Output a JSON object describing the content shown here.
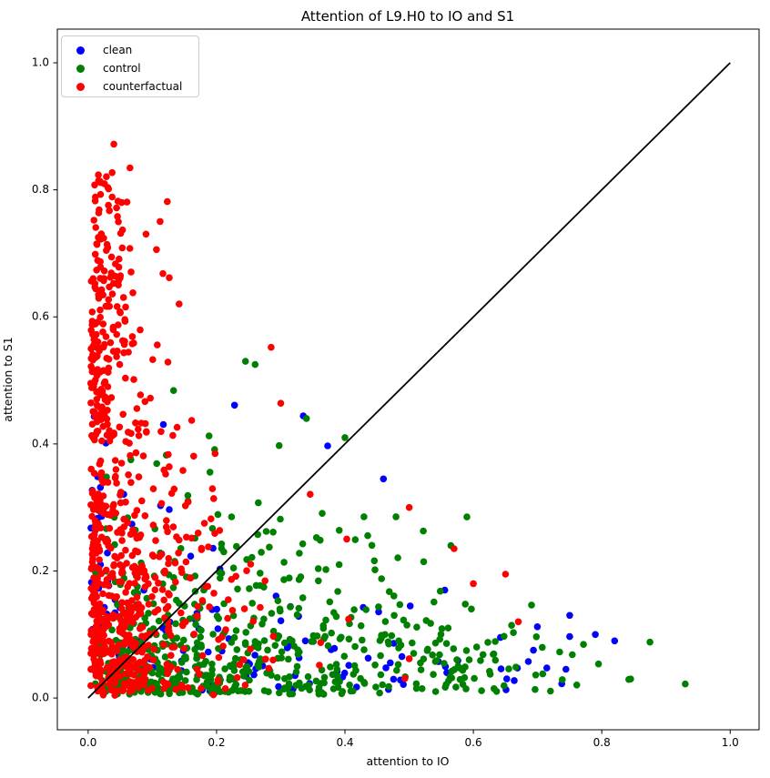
{
  "figure": {
    "background": "#ffffff"
  },
  "chart_data": {
    "type": "scatter",
    "title": "Attention of L9.H0 to IO and S1",
    "xlabel": "attention to IO",
    "ylabel": "attention to S1",
    "xlim": [
      -0.048,
      1.045
    ],
    "ylim": [
      -0.05,
      1.053
    ],
    "xticks": [
      0.0,
      0.2,
      0.4,
      0.6,
      0.8,
      1.0
    ],
    "yticks": [
      0.0,
      0.2,
      0.4,
      0.6,
      0.8,
      1.0
    ],
    "grid": false,
    "legend_position": "upper left",
    "marker_radius": 3.8,
    "seed": 1337,
    "identity_line": {
      "from": [
        0,
        0
      ],
      "to": [
        1,
        1
      ],
      "color": "#000000",
      "width": 1.8
    },
    "series": [
      {
        "name": "clean",
        "color": "#0000ff",
        "components": [
          {
            "n": 60,
            "x": [
              "absn",
              0.01,
              0.2,
              0.005,
              0.65
            ],
            "y": [
              "absn",
              0.01,
              0.12,
              0.005,
              0.42
            ],
            "cap": [
              0.5,
              -0.45
            ]
          },
          {
            "n": 45,
            "x": [
              "unif",
              0.25,
              0.75,
              0.25,
              0.75
            ],
            "y": [
              "exp",
              0.01,
              0.07,
              0.01,
              0.3
            ],
            "cap": [
              0.42,
              -0.38
            ]
          },
          {
            "n": 25,
            "x": [
              "exp",
              0.004,
              0.04,
              0.002,
              0.16
            ],
            "y": [
              "unif",
              0.03,
              0.46,
              0.03,
              0.46
            ]
          }
        ],
        "points": [
          [
            0.335,
            0.444
          ],
          [
            0.228,
            0.461
          ],
          [
            0.373,
            0.397
          ],
          [
            0.79,
            0.1
          ],
          [
            0.82,
            0.09
          ],
          [
            0.75,
            0.13
          ],
          [
            0.46,
            0.345
          ]
        ]
      },
      {
        "name": "control",
        "color": "#008000",
        "components": [
          {
            "n": 400,
            "x": [
              "absn",
              0.01,
              0.24,
              0.005,
              0.8
            ],
            "y": [
              "exp",
              0.006,
              0.07,
              0.004,
              0.32
            ],
            "cap": [
              0.56,
              -0.52
            ]
          },
          {
            "n": 160,
            "x": [
              "unif",
              0.02,
              0.55,
              0.02,
              0.55
            ],
            "y": [
              "absn",
              0.01,
              0.17,
              0.005,
              0.52
            ],
            "cap": [
              0.58,
              -0.52
            ]
          },
          {
            "n": 60,
            "x": [
              "exp",
              0.5,
              0.13,
              0.5,
              0.9
            ],
            "y": [
              "exp",
              0.01,
              0.05,
              0.008,
              0.22
            ],
            "cap": [
              0.33,
              -0.28
            ]
          }
        ],
        "points": [
          [
            0.93,
            0.022
          ],
          [
            0.845,
            0.03
          ],
          [
            0.875,
            0.088
          ],
          [
            0.245,
            0.53
          ],
          [
            0.26,
            0.525
          ],
          [
            0.34,
            0.44
          ],
          [
            0.4,
            0.41
          ],
          [
            0.59,
            0.285
          ],
          [
            0.565,
            0.24
          ],
          [
            0.133,
            0.484
          ]
        ]
      },
      {
        "name": "counterfactual",
        "color": "#ff0000",
        "components": [
          {
            "n": 450,
            "x": [
              "exp",
              0.004,
              0.055,
              0.002,
              0.3
            ],
            "y": [
              "absn",
              0.004,
              0.21,
              0.002,
              0.55
            ],
            "cap": [
              0.66,
              -0.72
            ]
          },
          {
            "n": 150,
            "x": [
              "exp",
              0.004,
              0.032,
              0.002,
              0.15
            ],
            "y": [
              "unif",
              0.4,
              0.68,
              0.4,
              0.68
            ]
          },
          {
            "n": 55,
            "x": [
              "exp",
              0.008,
              0.03,
              0.005,
              0.13
            ],
            "y": [
              "unif",
              0.66,
              0.838,
              0.66,
              0.838
            ]
          },
          {
            "n": 125,
            "x": [
              "exp",
              0.06,
              0.09,
              0.05,
              0.58
            ],
            "y": [
              "absn",
              0.01,
              0.15,
              0.005,
              0.42
            ],
            "cap": [
              0.62,
              -0.72
            ]
          }
        ],
        "points": [
          [
            0.04,
            0.872
          ],
          [
            0.285,
            0.552
          ],
          [
            0.3,
            0.464
          ],
          [
            0.5,
            0.3
          ],
          [
            0.57,
            0.235
          ],
          [
            0.65,
            0.195
          ],
          [
            0.67,
            0.12
          ],
          [
            0.6,
            0.18
          ]
        ]
      }
    ]
  }
}
